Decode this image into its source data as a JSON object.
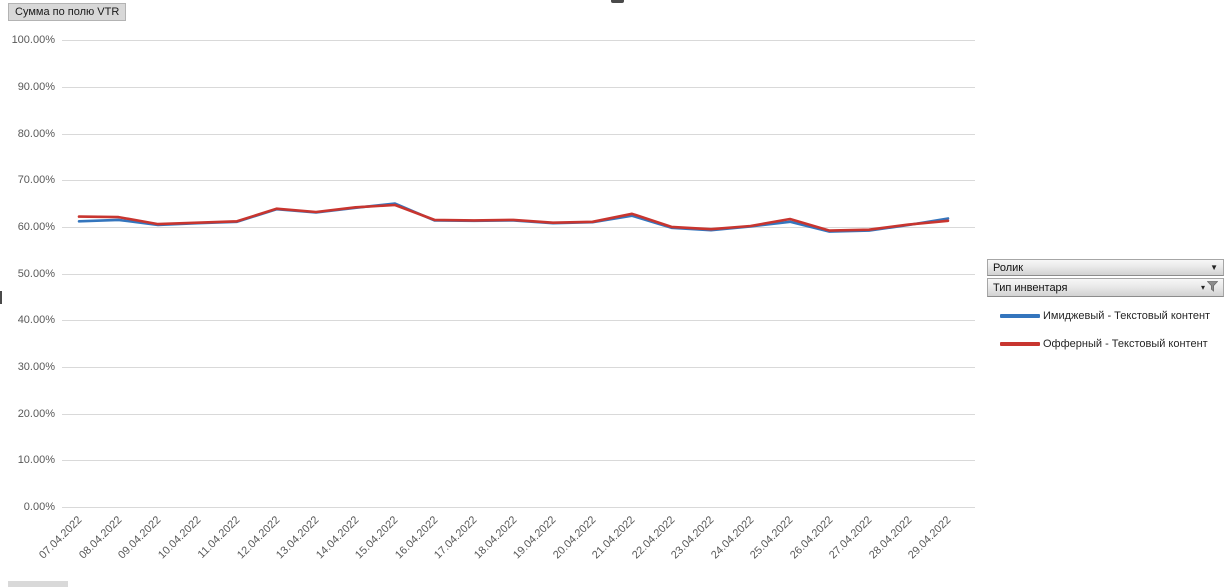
{
  "field_buttons": {
    "value_button_label": "Сумма по полю VTR",
    "rolik_label": "Ролик",
    "inventory_type_label": "Тип инвентаря"
  },
  "legend": {
    "items": [
      {
        "label": "Имиджевый - Текстовый контент",
        "color": "#3475bd"
      },
      {
        "label": "Офферный - Текстовый контент",
        "color": "#c8352f"
      }
    ]
  },
  "chart_data": {
    "type": "line",
    "title": "",
    "xlabel": "",
    "ylabel": "",
    "ylim": [
      0,
      100
    ],
    "grid": true,
    "legend_position": "right",
    "ytick_labels": [
      "0.00%",
      "10.00%",
      "20.00%",
      "30.00%",
      "40.00%",
      "50.00%",
      "60.00%",
      "70.00%",
      "80.00%",
      "90.00%",
      "100.00%"
    ],
    "categories": [
      "07.04.2022",
      "08.04.2022",
      "09.04.2022",
      "10.04.2022",
      "11.04.2022",
      "12.04.2022",
      "13.04.2022",
      "14.04.2022",
      "15.04.2022",
      "16.04.2022",
      "17.04.2022",
      "18.04.2022",
      "19.04.2022",
      "20.04.2022",
      "21.04.2022",
      "22.04.2022",
      "23.04.2022",
      "24.04.2022",
      "25.04.2022",
      "26.04.2022",
      "27.04.2022",
      "28.04.2022",
      "29.04.2022"
    ],
    "series": [
      {
        "name": "Имиджевый - Текстовый контент",
        "color": "#3475bd",
        "values": [
          61.2,
          61.5,
          60.4,
          60.8,
          61.1,
          63.8,
          63.1,
          64.1,
          65.0,
          61.4,
          61.3,
          61.4,
          60.8,
          61.0,
          62.4,
          59.8,
          59.3,
          60.1,
          61.1,
          59.0,
          59.2,
          60.4,
          61.8
        ]
      },
      {
        "name": "Офферный - Текстовый контент",
        "color": "#c8352f",
        "values": [
          62.2,
          62.1,
          60.6,
          60.9,
          61.2,
          63.9,
          63.2,
          64.2,
          64.7,
          61.5,
          61.4,
          61.5,
          60.9,
          61.1,
          62.8,
          60.0,
          59.5,
          60.2,
          61.7,
          59.2,
          59.4,
          60.5,
          61.3
        ]
      }
    ]
  }
}
